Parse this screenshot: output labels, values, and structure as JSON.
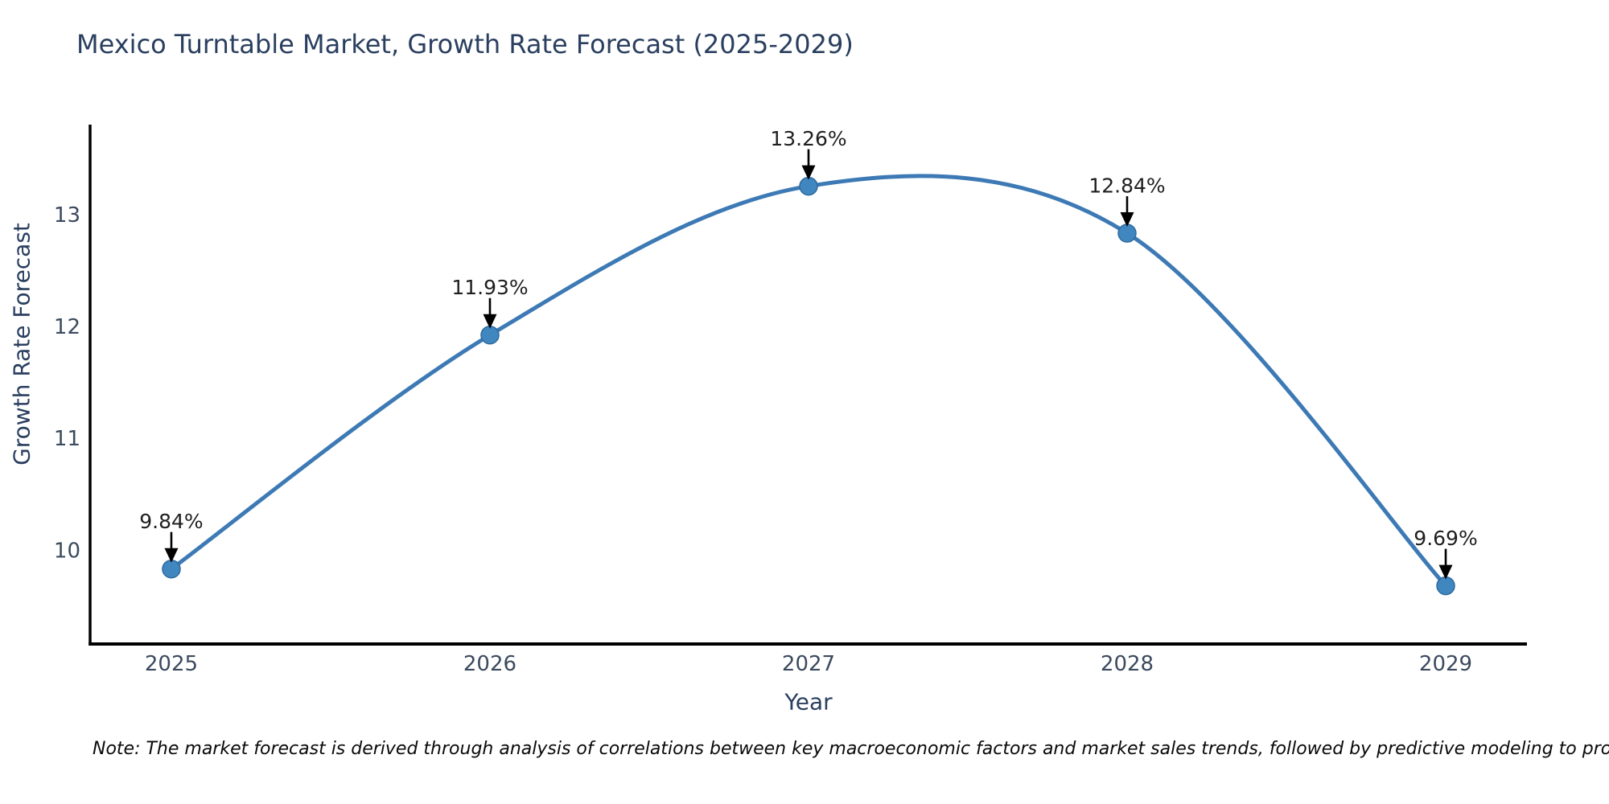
{
  "title": "Mexico Turntable Market, Growth Rate Forecast (2025-2029)",
  "note": "Note: The market forecast is derived through analysis of correlations between key macroeconomic factors and market sales trends, followed by predictive modeling to project future sales.",
  "chart_data": {
    "type": "line",
    "title": "Mexico Turntable Market, Growth Rate Forecast (2025-2029)",
    "xlabel": "Year",
    "ylabel": "Growth Rate Forecast",
    "categories": [
      "2025",
      "2026",
      "2027",
      "2028",
      "2029"
    ],
    "values": [
      9.84,
      11.93,
      13.26,
      12.84,
      9.69
    ],
    "point_labels": [
      "9.84%",
      "11.93%",
      "13.26%",
      "12.84%",
      "9.69%"
    ],
    "yticks": [
      10,
      11,
      12,
      13
    ],
    "ylim": [
      9.17,
      13.81
    ],
    "xlim": [
      2024.745,
      2029.255
    ],
    "grid": false,
    "legend": "none",
    "smooth": true,
    "annotation_arrows": true,
    "colors": {
      "line": "#3d7ab5",
      "marker_fill": "#4187bf",
      "marker_edge": "#2e6a9e",
      "axis": "#000000",
      "arrow": "#000000"
    }
  }
}
